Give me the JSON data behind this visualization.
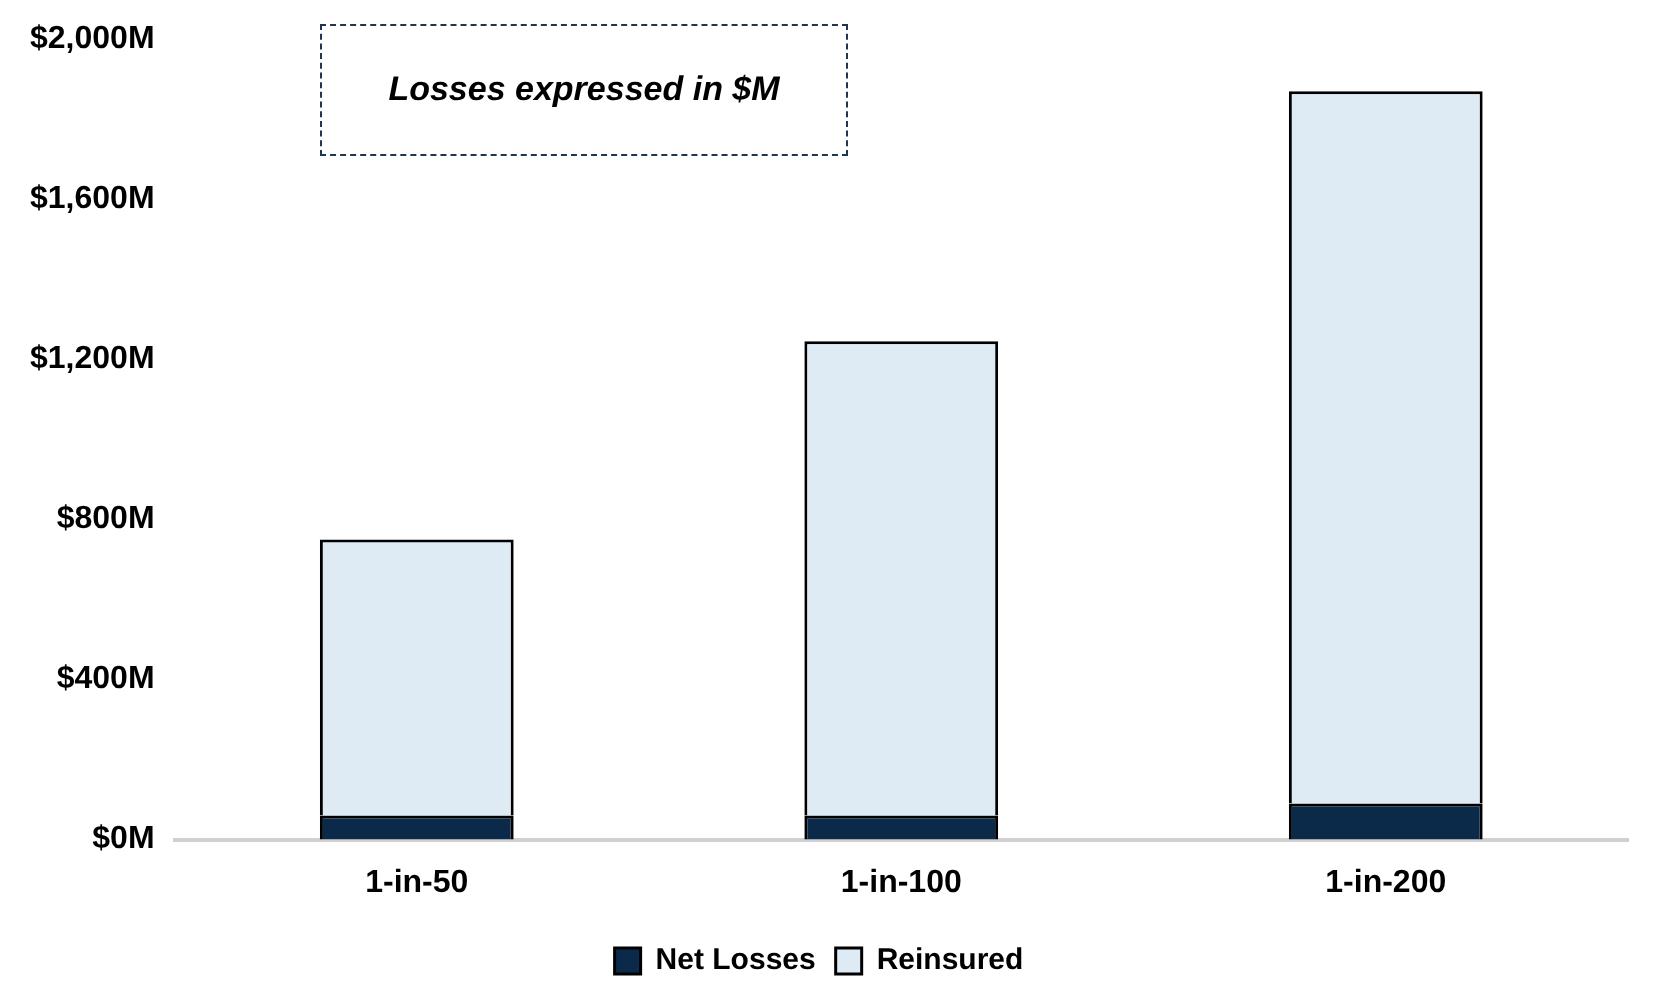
{
  "chart_data": {
    "type": "bar",
    "stacked": true,
    "categories": [
      "1-in-50",
      "1-in-100",
      "1-in-200"
    ],
    "series": [
      {
        "name": "Net Losses",
        "color": "#0b2a4a",
        "values": [
          60,
          60,
          90
        ]
      },
      {
        "name": "Reinsured",
        "color": "#deebf5",
        "values": [
          690,
          1185,
          1780
        ]
      }
    ],
    "ylim": [
      0,
      2000
    ],
    "yticks": [
      {
        "value": 0,
        "label": "$0M"
      },
      {
        "value": 400,
        "label": "$400M"
      },
      {
        "value": 800,
        "label": "$800M"
      },
      {
        "value": 1200,
        "label": "$1,200M"
      },
      {
        "value": 1600,
        "label": "$1,600M"
      },
      {
        "value": 2000,
        "label": "$2,000M"
      }
    ],
    "grid": false,
    "legend": "bottom",
    "annotations": [
      "Losses expressed in $M"
    ]
  }
}
